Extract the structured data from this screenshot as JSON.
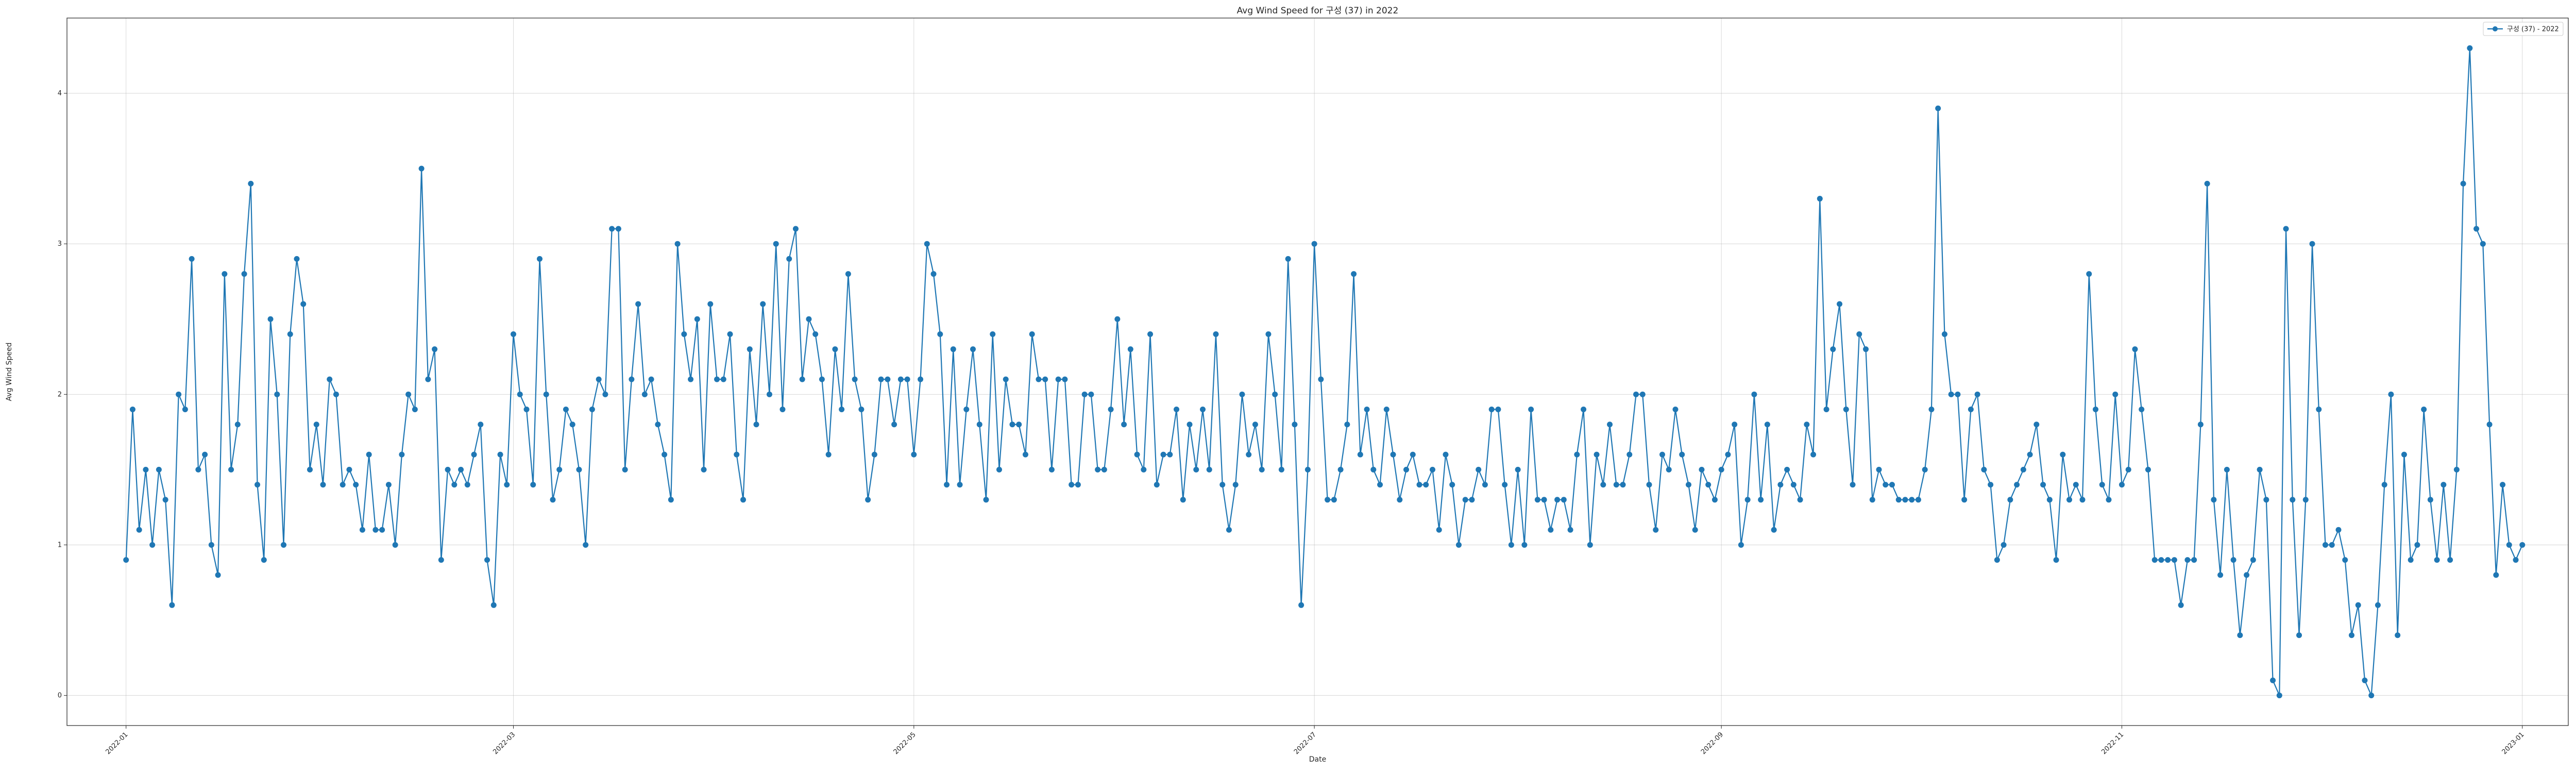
{
  "chart_data": {
    "type": "line",
    "title": "Avg Wind Speed for 구성 (37) in 2022",
    "xlabel": "Date",
    "ylabel": "Avg Wind Speed",
    "xlim": [
      "2021-12-23",
      "2023-01-08"
    ],
    "ylim": [
      -0.2,
      4.5
    ],
    "x_ticks": [
      "2022-01",
      "2022-03",
      "2022-05",
      "2022-07",
      "2022-09",
      "2022-11",
      "2023-01"
    ],
    "y_ticks": [
      0,
      1,
      2,
      3,
      4
    ],
    "grid": true,
    "legend_position": "top-right",
    "series": [
      {
        "name": "구성 (37) - 2022",
        "color": "#1f77b4",
        "marker": "circle",
        "x_start": "2022-01-01",
        "x_end": "2022-12-31",
        "values": [
          0.9,
          1.9,
          1.1,
          1.5,
          1.0,
          1.5,
          1.3,
          0.6,
          2.0,
          1.9,
          2.9,
          1.5,
          1.6,
          1.0,
          0.8,
          2.8,
          1.5,
          1.8,
          2.8,
          3.4,
          1.4,
          0.9,
          2.5,
          2.0,
          1.0,
          2.4,
          2.9,
          2.6,
          1.5,
          1.8,
          1.4,
          2.1,
          2.0,
          1.4,
          1.5,
          1.4,
          1.1,
          1.6,
          1.1,
          1.1,
          1.4,
          1.0,
          1.6,
          2.0,
          1.9,
          3.5,
          2.1,
          2.3,
          0.9,
          1.5,
          1.4,
          1.5,
          1.4,
          1.6,
          1.8,
          0.9,
          0.6,
          1.6,
          1.4,
          2.4,
          2.0,
          1.9,
          1.4,
          2.9,
          2.0,
          1.3,
          1.5,
          1.9,
          1.8,
          1.5,
          1.0,
          1.9,
          2.1,
          2.0,
          3.1,
          3.1,
          1.5,
          2.1,
          2.6,
          2.0,
          2.1,
          1.8,
          1.6,
          1.3,
          3.0,
          2.4,
          2.1,
          2.5,
          1.5,
          2.6,
          2.1,
          2.1,
          2.4,
          1.6,
          1.3,
          2.3,
          1.8,
          2.6,
          2.0,
          3.0,
          1.9,
          2.9,
          3.1,
          2.1,
          2.5,
          2.4,
          2.1,
          1.6,
          2.3,
          1.9,
          2.8,
          2.1,
          1.9,
          1.3,
          1.6,
          2.1,
          2.1,
          1.8,
          2.1,
          2.1,
          1.6,
          2.1,
          3.0,
          2.8,
          2.4,
          1.4,
          2.3,
          1.4,
          1.9,
          2.3,
          1.8,
          1.3,
          2.4,
          1.5,
          2.1,
          1.8,
          1.8,
          1.6,
          2.4,
          2.1,
          2.1,
          1.5,
          2.1,
          2.1,
          1.4,
          1.4,
          2.0,
          2.0,
          1.5,
          1.5,
          1.9,
          2.5,
          1.8,
          2.3,
          1.6,
          1.5,
          2.4,
          1.4,
          1.6,
          1.6,
          1.9,
          1.3,
          1.8,
          1.5,
          1.9,
          1.5,
          2.4,
          1.4,
          1.1,
          1.4,
          2.0,
          1.6,
          1.8,
          1.5,
          2.4,
          2.0,
          1.5,
          2.9,
          1.8,
          0.6,
          1.5,
          3.0,
          2.1,
          1.3,
          1.3,
          1.5,
          1.8,
          2.8,
          1.6,
          1.9,
          1.5,
          1.4,
          1.9,
          1.6,
          1.3,
          1.5,
          1.6,
          1.4,
          1.4,
          1.5,
          1.1,
          1.6,
          1.4,
          1.0,
          1.3,
          1.3,
          1.5,
          1.4,
          1.9,
          1.9,
          1.4,
          1.0,
          1.5,
          1.0,
          1.9,
          1.3,
          1.3,
          1.1,
          1.3,
          1.3,
          1.1,
          1.6,
          1.9,
          1.0,
          1.6,
          1.4,
          1.8,
          1.4,
          1.4,
          1.6,
          2.0,
          2.0,
          1.4,
          1.1,
          1.6,
          1.5,
          1.9,
          1.6,
          1.4,
          1.1,
          1.5,
          1.4,
          1.3,
          1.5,
          1.6,
          1.8,
          1.0,
          1.3,
          2.0,
          1.3,
          1.8,
          1.1,
          1.4,
          1.5,
          1.4,
          1.3,
          1.8,
          1.6,
          3.3,
          1.9,
          2.3,
          2.6,
          1.9,
          1.4,
          2.4,
          2.3,
          1.3,
          1.5,
          1.4,
          1.4,
          1.3,
          1.3,
          1.3,
          1.3,
          1.5,
          1.9,
          3.9,
          2.4,
          2.0,
          2.0,
          1.3,
          1.9,
          2.0,
          1.5,
          1.4,
          0.9,
          1.0,
          1.3,
          1.4,
          1.5,
          1.6,
          1.8,
          1.4,
          1.3,
          0.9,
          1.6,
          1.3,
          1.4,
          1.3,
          2.8,
          1.9,
          1.4,
          1.3,
          2.0,
          1.4,
          1.5,
          2.3,
          1.9,
          1.5,
          0.9,
          0.9,
          0.9,
          0.9,
          0.6,
          0.9,
          0.9,
          1.8,
          3.4,
          1.3,
          0.8,
          1.5,
          0.9,
          0.4,
          0.8,
          0.9,
          1.5,
          1.3,
          0.1,
          0.0,
          3.1,
          1.3,
          0.4,
          1.3,
          3.0,
          1.9,
          1.0,
          1.0,
          1.1,
          0.9,
          0.4,
          0.6,
          0.1,
          0.0,
          0.6,
          1.4,
          2.0,
          0.4,
          1.6,
          0.9,
          1.0,
          1.9,
          1.3,
          0.9,
          1.4,
          0.9,
          1.5,
          3.4,
          4.3,
          3.1,
          3.0,
          1.8,
          0.8,
          1.4,
          1.0,
          0.9,
          1.0
        ]
      }
    ]
  }
}
